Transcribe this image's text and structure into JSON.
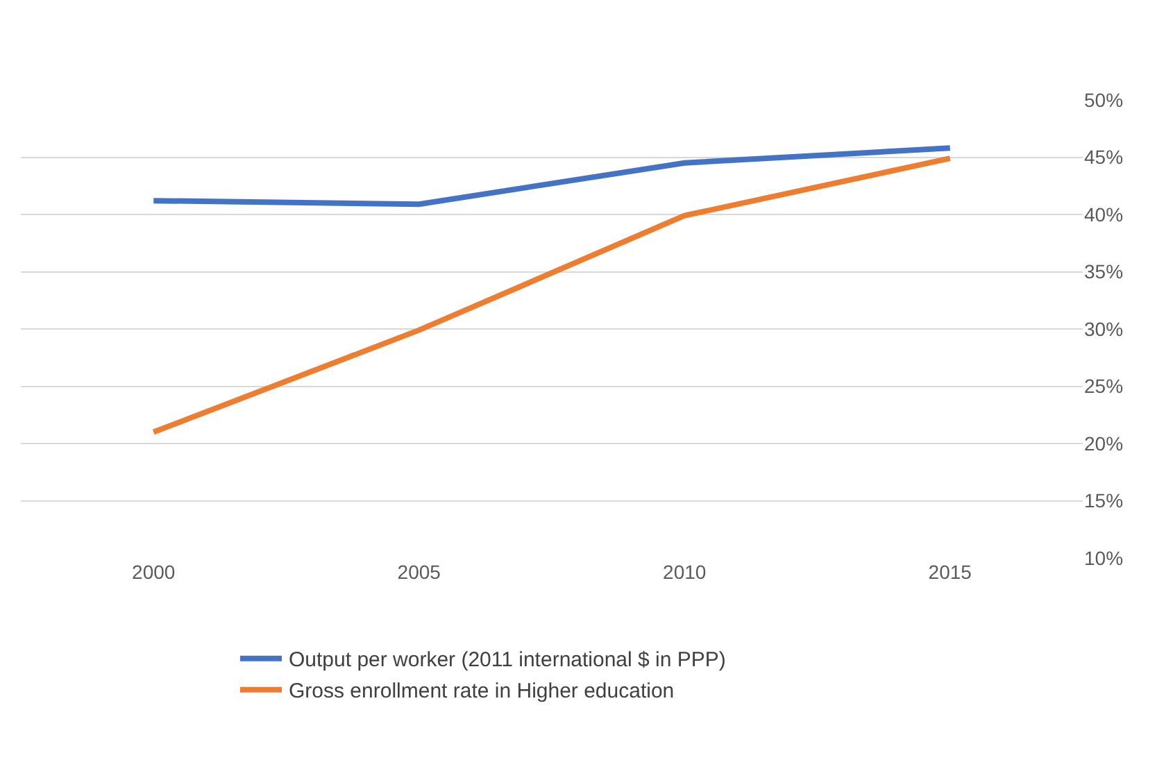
{
  "chart_data": {
    "type": "line",
    "categories": [
      "2000",
      "2005",
      "2010",
      "2015"
    ],
    "series": [
      {
        "name": "Output per worker (2011 international $ in PPP)",
        "color": "#4472c4",
        "values": [
          41.2,
          40.9,
          44.5,
          45.8
        ]
      },
      {
        "name": "Gross enrollment rate in Higher education",
        "color": "#ed7d31",
        "values": [
          21.0,
          29.9,
          39.9,
          44.9
        ]
      }
    ],
    "ylim": [
      10,
      50
    ],
    "yticks": [
      {
        "value": 10,
        "label": "10%"
      },
      {
        "value": 15,
        "label": "15%"
      },
      {
        "value": 20,
        "label": "20%"
      },
      {
        "value": 25,
        "label": "25%"
      },
      {
        "value": 30,
        "label": "30%"
      },
      {
        "value": 35,
        "label": "35%"
      },
      {
        "value": 40,
        "label": "40%"
      },
      {
        "value": 45,
        "label": "45%"
      },
      {
        "value": 50,
        "label": "50%"
      }
    ],
    "grid": "y",
    "legend": "bottom",
    "marker": "none",
    "line_style": "solid"
  }
}
